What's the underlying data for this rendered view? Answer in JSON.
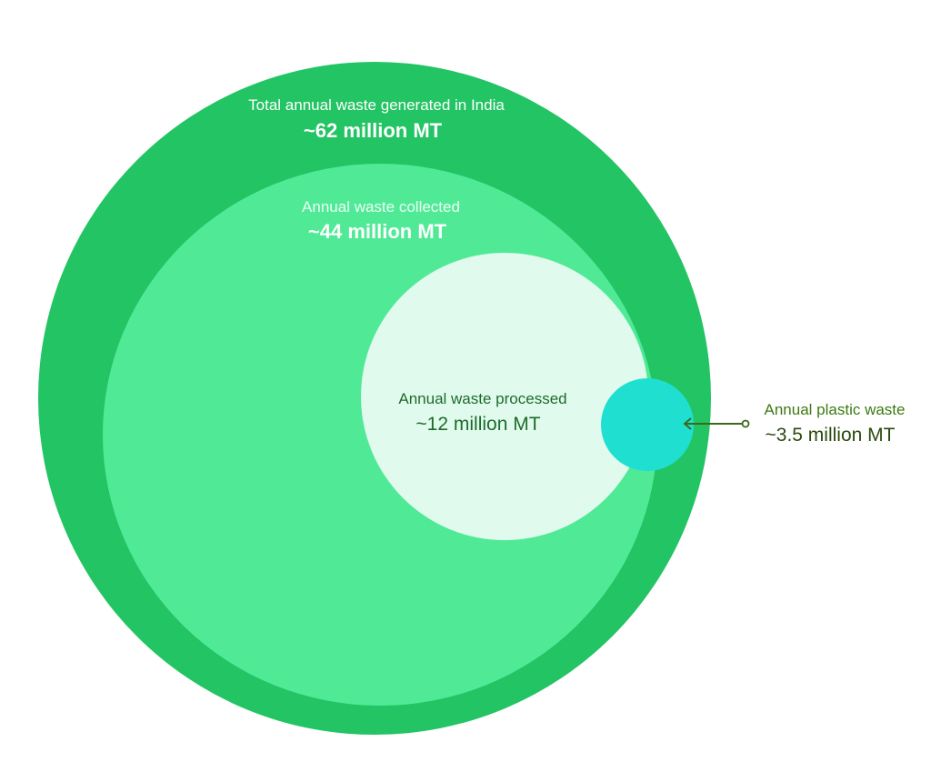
{
  "colors": {
    "background": "#ffffff",
    "total": "#22c463",
    "collected": "#50ea97",
    "processed": "#e0fbee",
    "plastic": "#1fe0d0",
    "connector": "#3a6b1a",
    "plastic_label_text": "#3d7a12",
    "plastic_value_text": "#2a4a0c",
    "processed_text": "#1e6b2a",
    "light_text": "#ffffff",
    "collected_label_text": "#eafff2"
  },
  "circles": [
    {
      "id": "total",
      "label": "Total annual waste generated in India",
      "value": "~62 million MT",
      "amount_million_mt": 62
    },
    {
      "id": "collected",
      "label": "Annual waste collected",
      "value": "~44 million MT",
      "amount_million_mt": 44
    },
    {
      "id": "processed",
      "label": "Annual waste processed",
      "value": "~12 million MT",
      "amount_million_mt": 12
    },
    {
      "id": "plastic",
      "label": "Annual plastic waste",
      "value": "~3.5 million MT",
      "amount_million_mt": 3.5
    }
  ]
}
